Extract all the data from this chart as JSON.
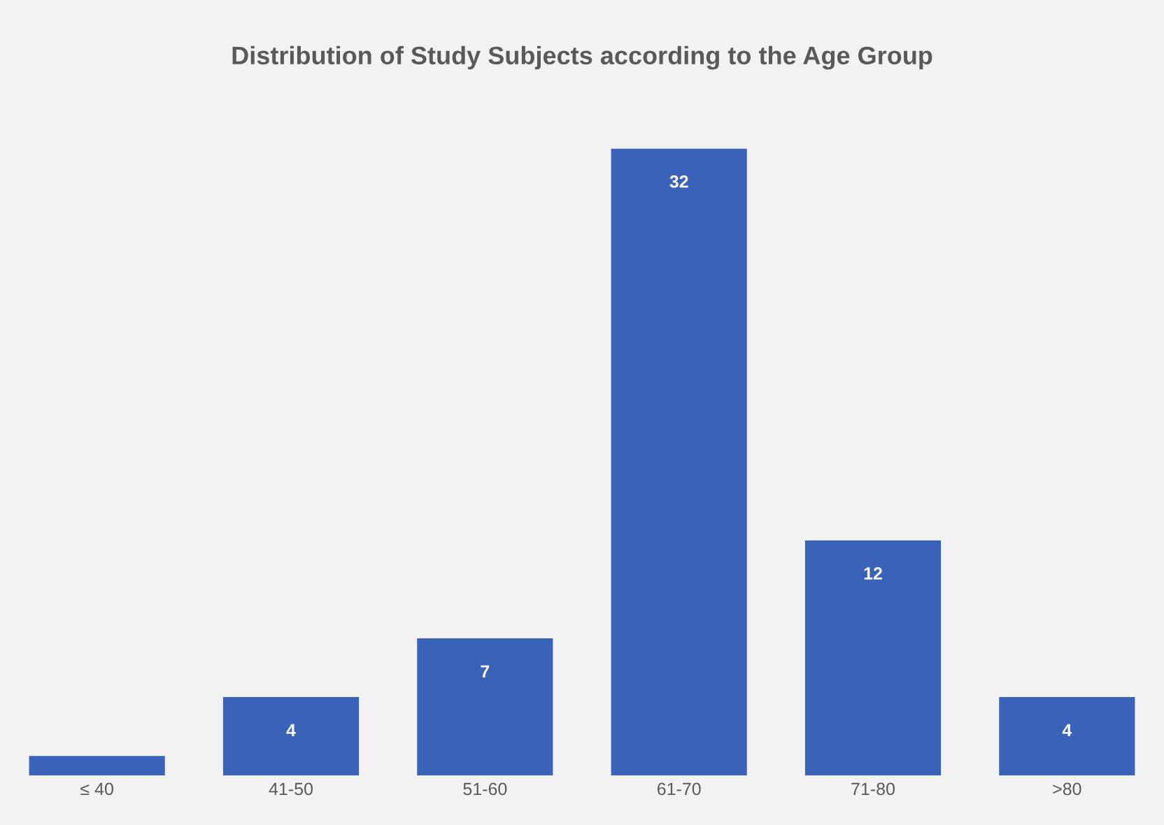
{
  "chart_data": {
    "type": "bar",
    "title": "Distribution of Study Subjects according to the Age Group",
    "categories": [
      "≤ 40",
      "41-50",
      "51-60",
      "61-70",
      "71-80",
      ">80"
    ],
    "values": [
      1,
      4,
      7,
      32,
      12,
      4
    ],
    "value_labels": [
      null,
      "4",
      "7",
      "32",
      "12",
      "4"
    ],
    "color": "#3a62b8",
    "grid": false,
    "legend": false
  }
}
